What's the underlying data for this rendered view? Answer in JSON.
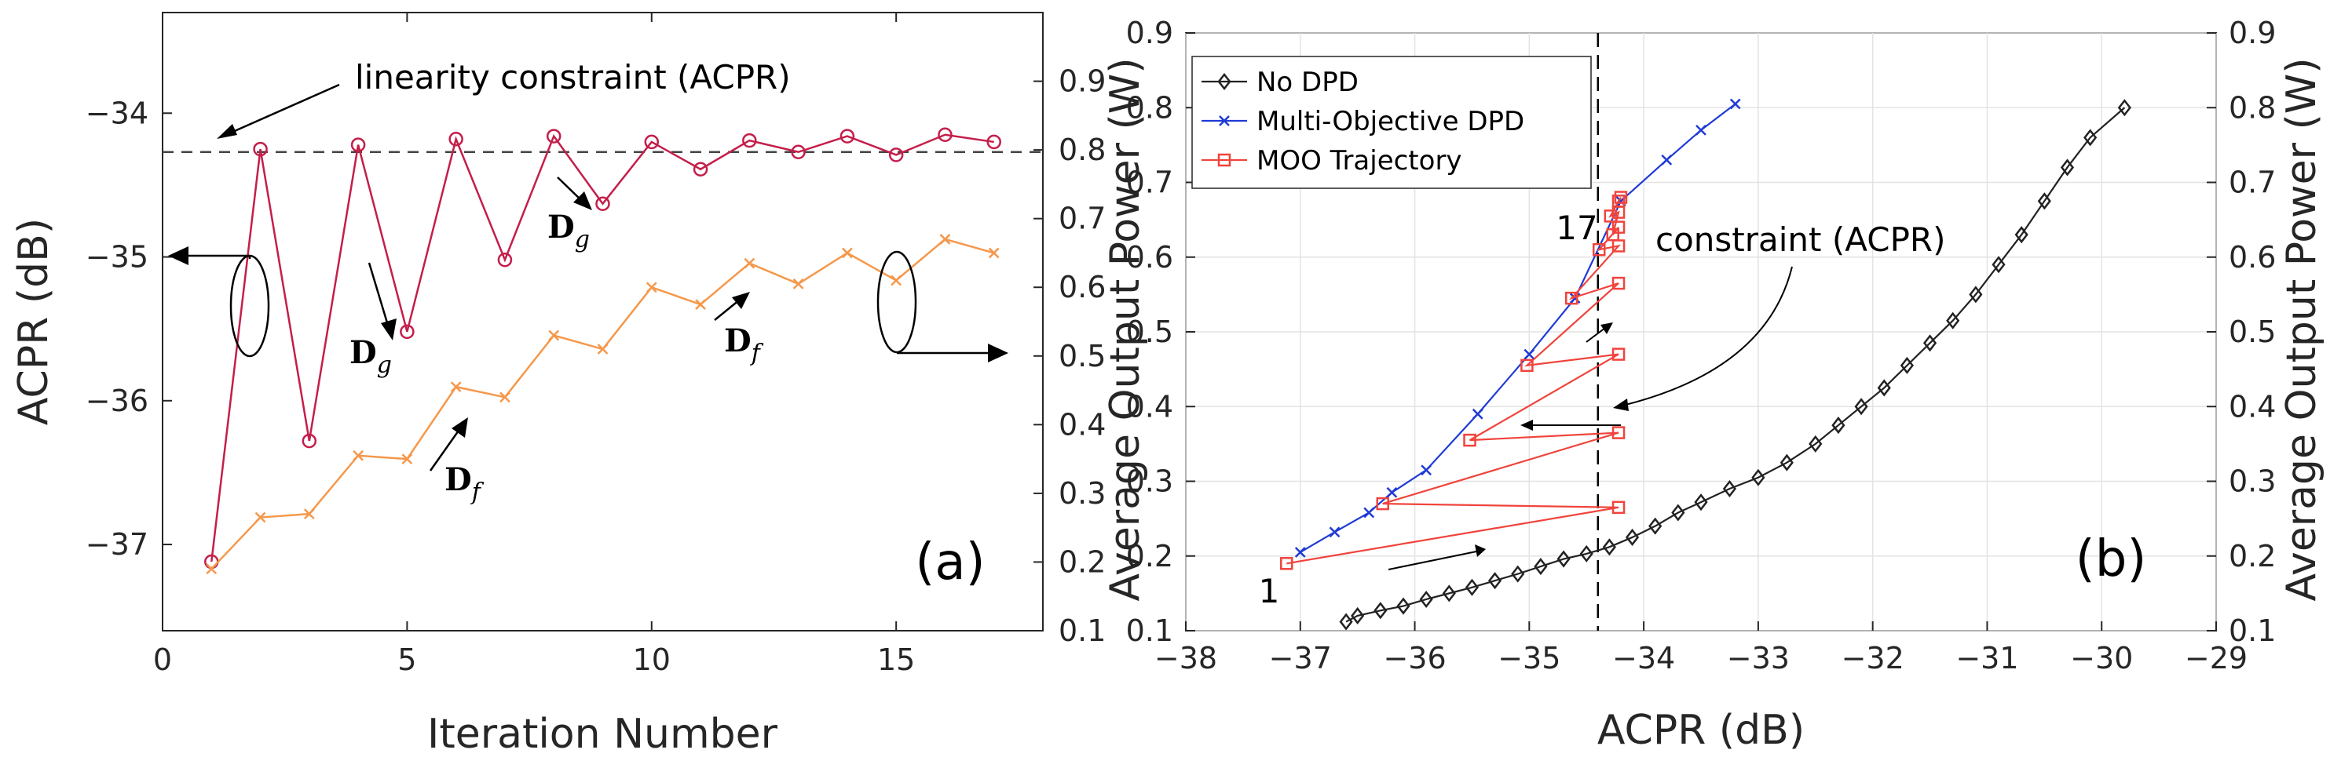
{
  "chart_data": [
    {
      "type": "line",
      "panel_label": "(a)",
      "xlabel": "Iteration Number",
      "ylabel_left": "ACPR (dB)",
      "ylabel_right": "Average Output Power (W)",
      "xlim": [
        0,
        18
      ],
      "ylim_left": [
        -37.6,
        -33.3
      ],
      "ylim_right": [
        0.1,
        1.0
      ],
      "xticks": [
        "0",
        "5",
        "10",
        "15"
      ],
      "yticks_left": [
        "−37",
        "−36",
        "−35",
        "−34"
      ],
      "yticks_right": [
        "0.1",
        "0.2",
        "0.3",
        "0.4",
        "0.5",
        "0.6",
        "0.7",
        "0.8",
        "0.9"
      ],
      "constraint": -34.27,
      "series": [
        {
          "name": "ACPR",
          "axis": "left",
          "color": "#c41e4a",
          "marker": "circle",
          "x": [
            1,
            2,
            3,
            4,
            5,
            6,
            7,
            8,
            9,
            10,
            11,
            12,
            13,
            14,
            15,
            16,
            17
          ],
          "values": [
            -37.12,
            -34.25,
            -36.28,
            -34.22,
            -35.52,
            -34.18,
            -35.02,
            -34.16,
            -34.63,
            -34.2,
            -34.39,
            -34.19,
            -34.27,
            -34.16,
            -34.29,
            -34.15,
            -34.2
          ]
        },
        {
          "name": "Average Output Power",
          "axis": "right",
          "color": "#f5984b",
          "marker": "x",
          "x": [
            1,
            2,
            3,
            4,
            5,
            6,
            7,
            8,
            9,
            10,
            11,
            12,
            13,
            14,
            15,
            16,
            17
          ],
          "values": [
            0.19,
            0.265,
            0.27,
            0.355,
            0.35,
            0.455,
            0.44,
            0.53,
            0.51,
            0.6,
            0.575,
            0.635,
            0.605,
            0.65,
            0.61,
            0.67,
            0.65
          ]
        }
      ],
      "annotations": {
        "constraint_text": "linearity constraint (ACPR)",
        "direction_labels": [
          {
            "main": "D",
            "sub": "g"
          },
          {
            "main": "D",
            "sub": "g"
          },
          {
            "main": "D",
            "sub": "f"
          },
          {
            "main": "D",
            "sub": "f"
          }
        ]
      }
    },
    {
      "type": "line",
      "panel_label": "(b)",
      "xlabel": "ACPR (dB)",
      "ylabel_left": "Average Output Power (W)",
      "ylabel_right": "Average Output Power (W)",
      "xlim": [
        -38,
        -29
      ],
      "ylim": [
        0.1,
        0.9
      ],
      "xticks": [
        "−38",
        "−37",
        "−36",
        "−35",
        "−34",
        "−33",
        "−32",
        "−31",
        "−30",
        "−29"
      ],
      "yticks_left": [
        "0.1",
        "0.2",
        "0.3",
        "0.4",
        "0.5",
        "0.6",
        "0.7",
        "0.8",
        "0.9"
      ],
      "yticks_right": [
        "0.1",
        "0.2",
        "0.3",
        "0.4",
        "0.5",
        "0.6",
        "0.7",
        "0.8",
        "0.9"
      ],
      "constraint": -34.4,
      "legend": [
        "No DPD",
        "Multi-Objective DPD",
        "MOO Trajectory"
      ],
      "series": [
        {
          "name": "No DPD",
          "color": "#222222",
          "marker": "diamond",
          "x": [
            -36.6,
            -36.5,
            -36.3,
            -36.1,
            -35.9,
            -35.7,
            -35.5,
            -35.3,
            -35.1,
            -34.9,
            -34.7,
            -34.5,
            -34.3,
            -34.1,
            -33.9,
            -33.7,
            -33.5,
            -33.25,
            -33.0,
            -32.75,
            -32.5,
            -32.3,
            -32.1,
            -31.9,
            -31.7,
            -31.5,
            -31.3,
            -31.1,
            -30.9,
            -30.7,
            -30.5,
            -30.3,
            -30.1,
            -29.8
          ],
          "values": [
            0.112,
            0.12,
            0.127,
            0.133,
            0.142,
            0.15,
            0.158,
            0.167,
            0.176,
            0.186,
            0.196,
            0.203,
            0.212,
            0.225,
            0.24,
            0.258,
            0.272,
            0.29,
            0.305,
            0.325,
            0.35,
            0.375,
            0.4,
            0.425,
            0.455,
            0.485,
            0.515,
            0.55,
            0.59,
            0.63,
            0.675,
            0.72,
            0.76,
            0.8
          ]
        },
        {
          "name": "Multi-Objective DPD",
          "color": "#1f3ad6",
          "marker": "x",
          "x": [
            -37.0,
            -36.7,
            -36.4,
            -36.2,
            -35.9,
            -35.45,
            -35.0,
            -34.6,
            -34.2,
            -33.8,
            -33.5,
            -33.2
          ],
          "values": [
            0.205,
            0.232,
            0.258,
            0.285,
            0.315,
            0.39,
            0.47,
            0.545,
            0.675,
            0.73,
            0.77,
            0.805
          ]
        },
        {
          "name": "MOO Trajectory",
          "color": "#f0443c",
          "marker": "square",
          "x": [
            -37.12,
            -34.22,
            -36.28,
            -34.22,
            -35.52,
            -34.22,
            -35.02,
            -34.22,
            -34.63,
            -34.22,
            -34.39,
            -34.22,
            -34.27,
            -34.22,
            -34.29,
            -34.22,
            -34.2
          ],
          "values": [
            0.19,
            0.265,
            0.27,
            0.365,
            0.355,
            0.47,
            0.455,
            0.565,
            0.545,
            0.615,
            0.61,
            0.64,
            0.63,
            0.66,
            0.655,
            0.675,
            0.68
          ]
        }
      ],
      "annotations": {
        "constraint_text": "constraint (ACPR)",
        "start_label": "1",
        "end_label": "17"
      }
    }
  ]
}
